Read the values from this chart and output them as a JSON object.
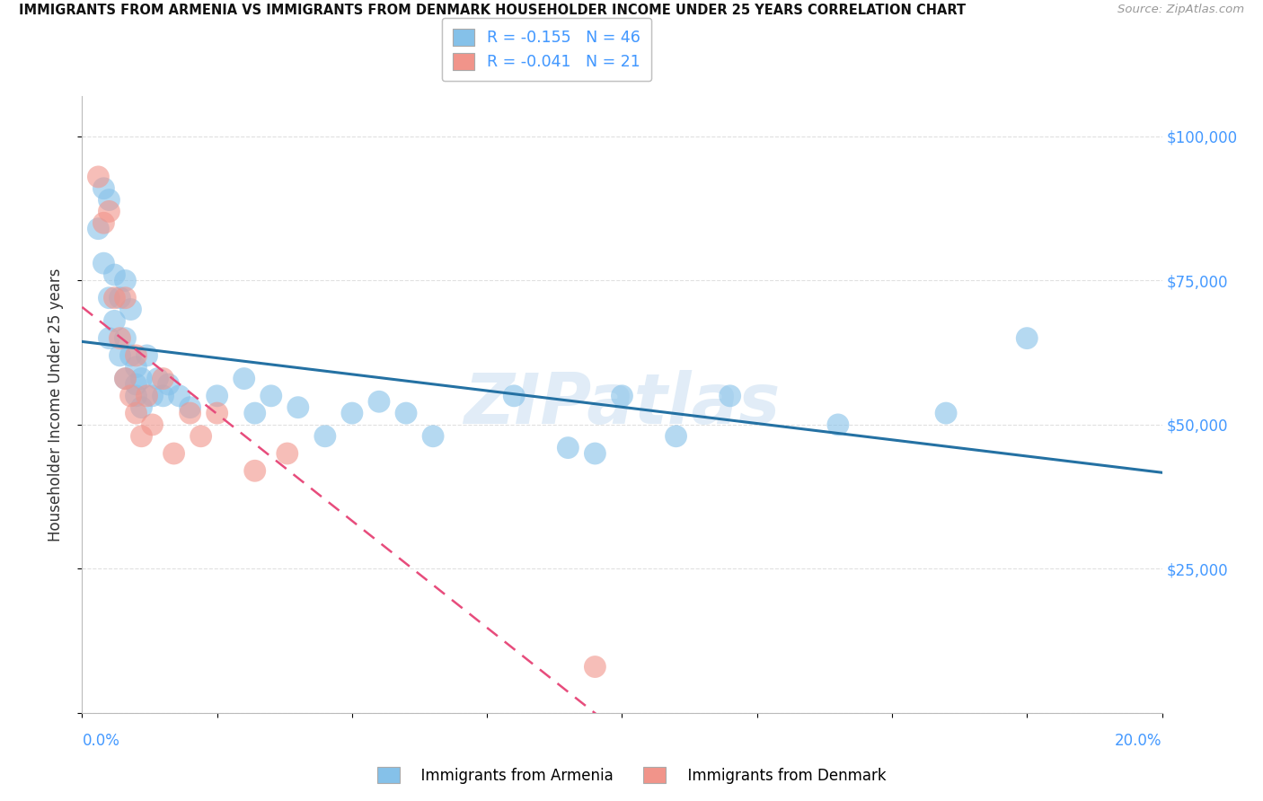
{
  "title": "IMMIGRANTS FROM ARMENIA VS IMMIGRANTS FROM DENMARK HOUSEHOLDER INCOME UNDER 25 YEARS CORRELATION CHART",
  "source": "Source: ZipAtlas.com",
  "ylabel": "Householder Income Under 25 years",
  "xlim": [
    0.0,
    0.2
  ],
  "ylim": [
    0,
    107000
  ],
  "y_ticks": [
    0,
    25000,
    50000,
    75000,
    100000
  ],
  "y_tick_labels": [
    "",
    "$25,000",
    "$50,000",
    "$75,000",
    "$100,000"
  ],
  "x_ticks": [
    0.0,
    0.025,
    0.05,
    0.075,
    0.1,
    0.125,
    0.15,
    0.175,
    0.2
  ],
  "armenia_R": -0.155,
  "armenia_N": 46,
  "denmark_R": -0.041,
  "denmark_N": 21,
  "armenia_color": "#85C1E9",
  "denmark_color": "#F1948A",
  "armenia_line_color": "#2471A3",
  "denmark_line_color": "#E74C7C",
  "background_color": "#FFFFFF",
  "watermark": "ZIPatlas",
  "armenia_x": [
    0.003,
    0.004,
    0.004,
    0.005,
    0.005,
    0.005,
    0.006,
    0.006,
    0.007,
    0.007,
    0.008,
    0.008,
    0.008,
    0.009,
    0.009,
    0.01,
    0.01,
    0.01,
    0.011,
    0.011,
    0.012,
    0.013,
    0.014,
    0.015,
    0.016,
    0.018,
    0.02,
    0.025,
    0.03,
    0.032,
    0.035,
    0.04,
    0.045,
    0.05,
    0.055,
    0.06,
    0.065,
    0.08,
    0.09,
    0.095,
    0.1,
    0.11,
    0.12,
    0.14,
    0.16,
    0.175
  ],
  "armenia_y": [
    84000,
    91000,
    78000,
    89000,
    72000,
    65000,
    76000,
    68000,
    62000,
    72000,
    75000,
    65000,
    58000,
    70000,
    62000,
    57000,
    55000,
    60000,
    53000,
    58000,
    62000,
    55000,
    58000,
    55000,
    57000,
    55000,
    53000,
    55000,
    58000,
    52000,
    55000,
    53000,
    48000,
    52000,
    54000,
    52000,
    48000,
    55000,
    46000,
    45000,
    55000,
    48000,
    55000,
    50000,
    52000,
    65000
  ],
  "denmark_x": [
    0.003,
    0.004,
    0.005,
    0.006,
    0.007,
    0.008,
    0.008,
    0.009,
    0.01,
    0.01,
    0.011,
    0.012,
    0.013,
    0.015,
    0.017,
    0.02,
    0.022,
    0.025,
    0.032,
    0.038,
    0.095
  ],
  "denmark_y": [
    93000,
    85000,
    87000,
    72000,
    65000,
    58000,
    72000,
    55000,
    62000,
    52000,
    48000,
    55000,
    50000,
    58000,
    45000,
    52000,
    48000,
    52000,
    42000,
    45000,
    8000
  ]
}
